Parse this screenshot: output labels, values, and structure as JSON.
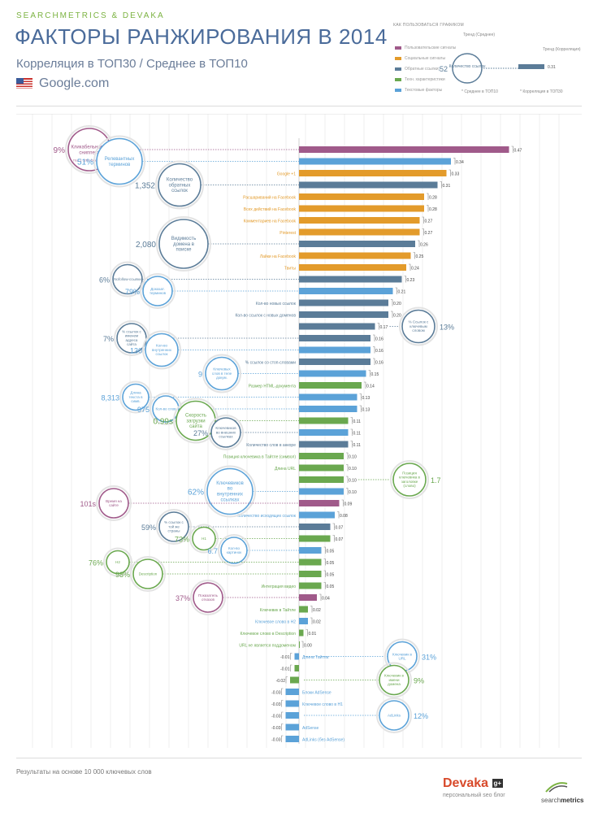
{
  "header": {
    "brand": "SEARCHMETRICS & DEVAKA",
    "title": "ФАКТОРЫ РАНЖИРОВАНИЯ В 2014",
    "subtitle": "Корреляция в ТОП30 / Среднее в ТОП10",
    "engine": "Google.com"
  },
  "legend": {
    "title": "КАК ПОЛЬЗОВАТЬСЯ ГРАФИКОМ",
    "items": [
      {
        "label": "Пользовательские сигналы",
        "color": "#a05a8a"
      },
      {
        "label": "Социальные сигналы",
        "color": "#e39b2b"
      },
      {
        "label": "Обратные ссылки",
        "color": "#5b7c98"
      },
      {
        "label": "Техн. характеристики",
        "color": "#6aa84f"
      },
      {
        "label": "Текстовые факторы",
        "color": "#5ba2d8"
      }
    ],
    "trend_avg": "Тренд (Среднее)",
    "trend_corr": "Тренд (Корреляция)",
    "example_value": "1,352",
    "example_corr": "0.31",
    "example_bubble": "Количество ссылок",
    "avg_note": "* Среднее в ТОП10",
    "corr_note": "* Корреляция в ТОП30"
  },
  "colors": {
    "user": "#a05a8a",
    "social": "#e39b2b",
    "backlinks": "#5b7c98",
    "tech": "#6aa84f",
    "text": "#5ba2d8"
  },
  "chart_data": {
    "type": "bar",
    "orientation": "horizontal",
    "bars": [
      {
        "label": "",
        "value": 0.47,
        "cat": "user"
      },
      {
        "label": "",
        "value": 0.34,
        "cat": "text"
      },
      {
        "label": "Google +1",
        "value": 0.33,
        "cat": "social"
      },
      {
        "label": "",
        "value": 0.31,
        "cat": "backlinks"
      },
      {
        "label": "Расшариваний на Facebook",
        "value": 0.28,
        "cat": "social"
      },
      {
        "label": "Всех действий на Facebook",
        "value": 0.28,
        "cat": "social"
      },
      {
        "label": "Комментариев на Facebook",
        "value": 0.27,
        "cat": "social"
      },
      {
        "label": "Pinterest",
        "value": 0.27,
        "cat": "social"
      },
      {
        "label": "",
        "value": 0.26,
        "cat": "backlinks"
      },
      {
        "label": "Лайки на Facebook",
        "value": 0.25,
        "cat": "social"
      },
      {
        "label": "Твиты",
        "value": 0.24,
        "cat": "social"
      },
      {
        "label": "",
        "value": 0.23,
        "cat": "backlinks"
      },
      {
        "label": "",
        "value": 0.21,
        "cat": "text"
      },
      {
        "label": "Кол-во новых ссылок",
        "value": 0.2,
        "cat": "backlinks"
      },
      {
        "label": "Кол-во ссылок с новых доменов",
        "value": 0.2,
        "cat": "backlinks"
      },
      {
        "label": "",
        "value": 0.17,
        "cat": "backlinks"
      },
      {
        "label": "",
        "value": 0.16,
        "cat": "backlinks"
      },
      {
        "label": "",
        "value": 0.16,
        "cat": "text"
      },
      {
        "label": "% ссылок со стоп-словами",
        "value": 0.16,
        "cat": "backlinks"
      },
      {
        "label": "",
        "value": 0.15,
        "cat": "text"
      },
      {
        "label": "Размер HTML-документа",
        "value": 0.14,
        "cat": "tech"
      },
      {
        "label": "",
        "value": 0.13,
        "cat": "text"
      },
      {
        "label": "",
        "value": 0.13,
        "cat": "text"
      },
      {
        "label": "",
        "value": 0.11,
        "cat": "tech"
      },
      {
        "label": "",
        "value": 0.11,
        "cat": "text"
      },
      {
        "label": "Количество слов в анкоре",
        "value": 0.11,
        "cat": "backlinks"
      },
      {
        "label": "Позиция ключевика в Тайтле (символ)",
        "value": 0.1,
        "cat": "tech"
      },
      {
        "label": "Длина URL",
        "value": 0.1,
        "cat": "tech"
      },
      {
        "label": "",
        "value": 0.1,
        "cat": "tech"
      },
      {
        "label": "",
        "value": 0.1,
        "cat": "text"
      },
      {
        "label": "",
        "value": 0.09,
        "cat": "user"
      },
      {
        "label": "Количество исходящих ссылок",
        "value": 0.08,
        "cat": "text"
      },
      {
        "label": "",
        "value": 0.07,
        "cat": "backlinks"
      },
      {
        "label": "",
        "value": 0.07,
        "cat": "tech"
      },
      {
        "label": "",
        "value": 0.05,
        "cat": "text"
      },
      {
        "label": "",
        "value": 0.05,
        "cat": "tech"
      },
      {
        "label": "",
        "value": 0.05,
        "cat": "tech"
      },
      {
        "label": "Интеграция видео",
        "value": 0.05,
        "cat": "tech"
      },
      {
        "label": "",
        "value": 0.04,
        "cat": "user"
      },
      {
        "label": "Ключевик в Тайтле",
        "value": 0.02,
        "cat": "tech"
      },
      {
        "label": "Ключевое слово в H2",
        "value": 0.02,
        "cat": "text"
      },
      {
        "label": "Ключевое слово в Description",
        "value": 0.01,
        "cat": "tech"
      },
      {
        "label": "URL не является поддоменом",
        "value": 0.0,
        "cat": "tech"
      },
      {
        "label": "Длина Тайтла",
        "value": -0.01,
        "cat": "text"
      },
      {
        "label": "",
        "value": -0.01,
        "cat": "tech"
      },
      {
        "label": "",
        "value": -0.02,
        "cat": "tech"
      },
      {
        "label": "Блоки AdSense",
        "value": -0.03,
        "cat": "text"
      },
      {
        "label": "Ключевое слово в H1",
        "value": -0.03,
        "cat": "text"
      },
      {
        "label": "",
        "value": -0.03,
        "cat": "text"
      },
      {
        "label": "AdSense",
        "value": -0.03,
        "cat": "text"
      },
      {
        "label": "AdLinks (без AdSense)",
        "value": -0.03,
        "cat": "text"
      }
    ],
    "bubbles": [
      {
        "row": 0,
        "side": "left",
        "value": "9%",
        "text": "Кликабельность сниппета",
        "sub": "Поз. 1: 32% / Поз.10: 3%",
        "cat": "user",
        "size": 26
      },
      {
        "row": 1,
        "side": "left",
        "value": "51%",
        "text": "Релевантных терминов",
        "cat": "text",
        "size": 28
      },
      {
        "row": 3,
        "side": "left",
        "value": "1,352",
        "text": "Количество обратных ссылок",
        "cat": "backlinks",
        "size": 26
      },
      {
        "row": 8,
        "side": "left",
        "value": "2,080",
        "text": "Видимость домена в поиске",
        "cat": "backlinks",
        "size": 30
      },
      {
        "row": 11,
        "side": "left",
        "value": "6%",
        "text": "Nofollow-ссылки",
        "cat": "backlinks",
        "size": 18
      },
      {
        "row": 12,
        "side": "left",
        "value": "79%",
        "text": "Доказат. терминов",
        "cat": "text",
        "size": 18
      },
      {
        "row": 15,
        "side": "right",
        "value": "13%",
        "text": "% Ссылок с ключевым словом",
        "cat": "backlinks",
        "size": 20
      },
      {
        "row": 16,
        "side": "left",
        "value": "7%",
        "text": "% ссылок с именем адреса сайта",
        "cat": "backlinks",
        "size": 18
      },
      {
        "row": 17,
        "side": "left",
        "value": "130",
        "text": "Кол-во внутренних ссылок",
        "cat": "text",
        "size": 20
      },
      {
        "row": 19,
        "side": "left",
        "value": "9",
        "text": "Ключевых слов в теле докум.",
        "cat": "text",
        "size": 20
      },
      {
        "row": 21,
        "side": "left",
        "value": "8,313",
        "text": "Длина текста в симв.",
        "cat": "text",
        "size": 16
      },
      {
        "row": 22,
        "side": "left",
        "value": "975",
        "text": "Кол-во слов",
        "cat": "text",
        "size": 16
      },
      {
        "row": 23,
        "side": "left",
        "value": "0.99s",
        "text": "Скорость загрузки сайта",
        "cat": "tech",
        "size": 24
      },
      {
        "row": 24,
        "side": "left",
        "value": "27%",
        "text": "Ключевиков во внешних ссылках",
        "cat": "backlinks",
        "size": 18
      },
      {
        "row": 28,
        "side": "right",
        "value": "1.7",
        "text": "Позиция ключевика в заголовке (слово)",
        "cat": "tech",
        "size": 20
      },
      {
        "row": 29,
        "side": "left",
        "value": "62%",
        "text": "Ключевиков во внутренних ссылках",
        "cat": "text",
        "size": 28
      },
      {
        "row": 30,
        "side": "left",
        "value": "101s",
        "text": "Время на сайте",
        "cat": "user",
        "size": 18
      },
      {
        "row": 32,
        "side": "left",
        "value": "59%",
        "text": "% ссылок с той же страны",
        "cat": "backlinks",
        "size": 18
      },
      {
        "row": 33,
        "side": "left",
        "value": "73%",
        "text": "H1",
        "cat": "tech",
        "size": 14
      },
      {
        "row": 34,
        "side": "left",
        "value": "6.7",
        "text": "Кол-во картинок",
        "cat": "text",
        "size": 16
      },
      {
        "row": 35,
        "side": "left",
        "value": "76%",
        "text": "H2",
        "cat": "tech",
        "size": 14
      },
      {
        "row": 36,
        "side": "left",
        "value": "98%",
        "text": "Description",
        "cat": "tech",
        "size": 18
      },
      {
        "row": 38,
        "side": "left",
        "value": "37%",
        "text": "Показатель отказов",
        "cat": "user",
        "size": 18
      },
      {
        "row": 43,
        "side": "right",
        "value": "31%",
        "text": "Ключевик в URL",
        "cat": "text",
        "size": 18
      },
      {
        "row": 45,
        "side": "right",
        "value": "9%",
        "text": "Ключевик в имени домена",
        "cat": "tech",
        "size": 18
      },
      {
        "row": 48,
        "side": "right",
        "value": "12%",
        "text": "AdLinks",
        "cat": "text",
        "size": 18
      }
    ]
  },
  "footer": {
    "note": "Результаты на основе 10 000 ключевых слов",
    "devaka": "Devaka",
    "devaka_sub": "персональный seo блог",
    "sm_prefix": "search",
    "sm_bold": "metrics"
  }
}
